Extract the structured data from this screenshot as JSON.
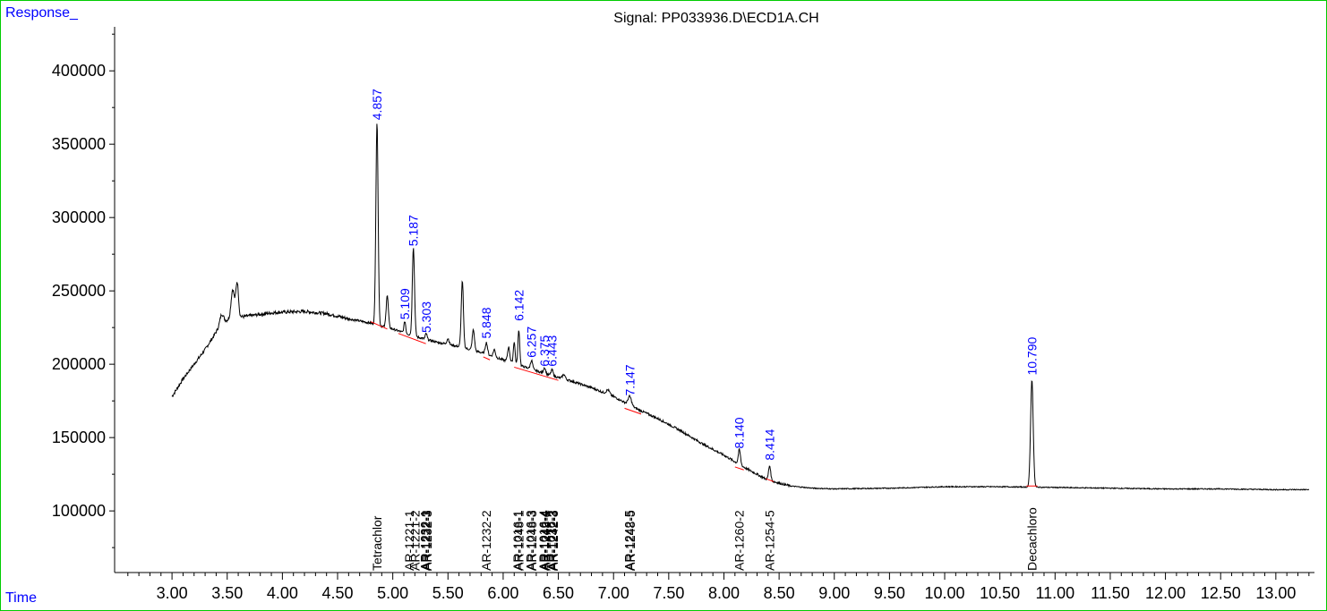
{
  "chart_data": {
    "type": "line",
    "title": "Signal: PP033936.D\\ECD1A.CH",
    "ylabel": "Response_",
    "xlabel": "Time",
    "xlim": [
      2.48,
      13.35
    ],
    "ylim": [
      58000,
      430000
    ],
    "x_ticks": [
      3.0,
      3.5,
      4.0,
      4.5,
      5.0,
      5.5,
      6.0,
      6.5,
      7.0,
      7.5,
      8.0,
      8.5,
      9.0,
      9.5,
      10.0,
      10.5,
      11.0,
      11.5,
      12.0,
      12.5,
      13.0
    ],
    "x_tick_labels": [
      "3.00",
      "3.50",
      "4.00",
      "4.50",
      "5.00",
      "5.50",
      "6.00",
      "6.50",
      "7.00",
      "7.50",
      "8.00",
      "8.50",
      "9.00",
      "9.50",
      "10.00",
      "10.50",
      "11.00",
      "11.50",
      "12.00",
      "12.50",
      "13.00"
    ],
    "y_ticks": [
      100000,
      150000,
      200000,
      250000,
      300000,
      350000,
      400000
    ],
    "y_tick_labels": [
      "100000",
      "150000",
      "200000",
      "250000",
      "300000",
      "350000",
      "400000"
    ],
    "grid": false,
    "series": [
      {
        "color": "#000000",
        "baseline": [
          [
            3.0,
            178000
          ],
          [
            3.1,
            190000
          ],
          [
            3.2,
            200000
          ],
          [
            3.3,
            210000
          ],
          [
            3.4,
            222000
          ],
          [
            3.5,
            230000
          ],
          [
            3.6,
            232000
          ],
          [
            3.7,
            233000
          ],
          [
            3.8,
            234000
          ],
          [
            3.9,
            235000
          ],
          [
            4.0,
            235500
          ],
          [
            4.2,
            236000
          ],
          [
            4.4,
            234500
          ],
          [
            4.6,
            231000
          ],
          [
            4.8,
            228000
          ],
          [
            5.0,
            224000
          ],
          [
            5.2,
            219000
          ],
          [
            5.4,
            215000
          ],
          [
            5.6,
            212000
          ],
          [
            5.8,
            208000
          ],
          [
            6.0,
            203000
          ],
          [
            6.2,
            198000
          ],
          [
            6.4,
            193000
          ],
          [
            6.6,
            189000
          ],
          [
            6.8,
            184000
          ],
          [
            7.0,
            178000
          ],
          [
            7.2,
            170000
          ],
          [
            7.4,
            163000
          ],
          [
            7.6,
            155000
          ],
          [
            7.8,
            146000
          ],
          [
            8.0,
            138000
          ],
          [
            8.2,
            129000
          ],
          [
            8.4,
            121000
          ],
          [
            8.6,
            117000
          ],
          [
            8.8,
            115500
          ],
          [
            9.0,
            115000
          ],
          [
            9.5,
            115500
          ],
          [
            10.0,
            116500
          ],
          [
            10.5,
            116500
          ],
          [
            11.0,
            116000
          ],
          [
            11.5,
            115500
          ],
          [
            12.0,
            115000
          ],
          [
            12.5,
            115000
          ],
          [
            13.0,
            114500
          ],
          [
            13.3,
            114500
          ]
        ],
        "peaks": [
          [
            3.45,
            8000,
            0.018
          ],
          [
            3.55,
            20000,
            0.015
          ],
          [
            3.59,
            24000,
            0.012
          ],
          [
            4.857,
            138000,
            0.01
          ],
          [
            4.95,
            22000,
            0.01
          ],
          [
            5.109,
            8000,
            0.008
          ],
          [
            5.187,
            60000,
            0.01
          ],
          [
            5.303,
            4000,
            0.008
          ],
          [
            5.5,
            4000,
            0.01
          ],
          [
            5.63,
            45000,
            0.01
          ],
          [
            5.73,
            14000,
            0.01
          ],
          [
            5.848,
            8000,
            0.01
          ],
          [
            5.92,
            5000,
            0.01
          ],
          [
            6.05,
            10000,
            0.01
          ],
          [
            6.1,
            15000,
            0.008
          ],
          [
            6.142,
            24000,
            0.008
          ],
          [
            6.257,
            6000,
            0.01
          ],
          [
            6.375,
            4000,
            0.01
          ],
          [
            6.443,
            4000,
            0.01
          ],
          [
            6.55,
            3000,
            0.012
          ],
          [
            6.95,
            3000,
            0.015
          ],
          [
            7.147,
            6000,
            0.015
          ],
          [
            8.14,
            10000,
            0.01
          ],
          [
            8.414,
            10000,
            0.01
          ],
          [
            10.79,
            73000,
            0.012
          ]
        ]
      }
    ],
    "peak_labels": [
      {
        "x": 4.857,
        "y": 364000,
        "text": "4.857"
      },
      {
        "x": 5.109,
        "y": 228000,
        "text": "5.109"
      },
      {
        "x": 5.187,
        "y": 278000,
        "text": "5.187"
      },
      {
        "x": 5.303,
        "y": 219000,
        "text": "5.303"
      },
      {
        "x": 5.848,
        "y": 215000,
        "text": "5.848"
      },
      {
        "x": 6.142,
        "y": 227000,
        "text": "6.142"
      },
      {
        "x": 6.257,
        "y": 202000,
        "text": "6.257"
      },
      {
        "x": 6.375,
        "y": 196000,
        "text": "6.375"
      },
      {
        "x": 6.443,
        "y": 196000,
        "text": "6.443"
      },
      {
        "x": 7.147,
        "y": 176000,
        "text": "7.147"
      },
      {
        "x": 8.14,
        "y": 140000,
        "text": "8.140"
      },
      {
        "x": 8.414,
        "y": 132000,
        "text": "8.414"
      },
      {
        "x": 10.79,
        "y": 190000,
        "text": "10.790"
      }
    ],
    "integration_baselines": [
      [
        4.8,
        229000,
        4.95,
        224000
      ],
      [
        5.05,
        221000,
        5.3,
        214000
      ],
      [
        5.82,
        205000,
        5.88,
        203000
      ],
      [
        6.1,
        198000,
        6.5,
        189000
      ],
      [
        7.1,
        170000,
        7.25,
        166000
      ],
      [
        8.1,
        130000,
        8.18,
        128000
      ],
      [
        8.38,
        122000,
        8.45,
        120000
      ],
      [
        10.74,
        117000,
        10.84,
        117000
      ]
    ],
    "compound_labels": [
      {
        "x": 4.857,
        "text": "Tetrachlor"
      },
      {
        "x": 5.15,
        "text": "AR-1221-1"
      },
      {
        "x": 5.203,
        "text": "AR-1221-2"
      },
      {
        "x": 5.29,
        "text": "AR-1232-1"
      },
      {
        "x": 5.31,
        "text": "AR-1232-3"
      },
      {
        "x": 5.3,
        "text": "AR-1222-3"
      },
      {
        "x": 5.848,
        "text": "AR-1232-2"
      },
      {
        "x": 6.13,
        "text": "AR-1016-1"
      },
      {
        "x": 6.142,
        "text": "AR-1248-1"
      },
      {
        "x": 6.25,
        "text": "AR-1016-3"
      },
      {
        "x": 6.262,
        "text": "AR-1248-3"
      },
      {
        "x": 6.365,
        "text": "AR-1016-4"
      },
      {
        "x": 6.375,
        "text": "AR-1242-4"
      },
      {
        "x": 6.385,
        "text": "AR-1248-4"
      },
      {
        "x": 6.435,
        "text": "AR-1016-2"
      },
      {
        "x": 6.447,
        "text": "AR-1232-3"
      },
      {
        "x": 6.455,
        "text": "AR-1242-3"
      },
      {
        "x": 7.14,
        "text": "AR-1242-5"
      },
      {
        "x": 7.152,
        "text": "AR-1248-5"
      },
      {
        "x": 8.14,
        "text": "AR-1260-2"
      },
      {
        "x": 8.414,
        "text": "AR-1254-5"
      },
      {
        "x": 10.79,
        "text": "Decachloro"
      }
    ]
  },
  "colors": {
    "frame": "#00cc00",
    "header_label": "#0000ff",
    "peak_label": "#0000ff",
    "integration": "#ff0000",
    "trace": "#000000"
  }
}
